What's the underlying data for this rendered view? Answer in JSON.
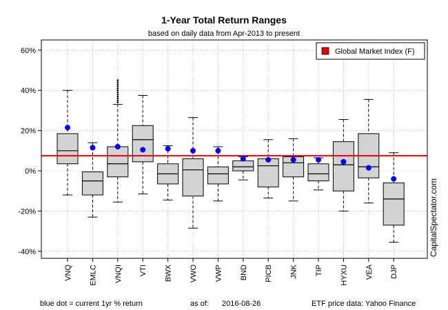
{
  "chart_data": {
    "type": "box",
    "title": "1-Year Total Return Ranges",
    "subtitle": "based on daily data from Apr-2013 to present",
    "ylim": [
      -45,
      63
    ],
    "yticks": [
      -40,
      -20,
      0,
      20,
      40,
      60
    ],
    "ytick_labels": [
      "-40%",
      "-20%",
      "0%",
      "20%",
      "40%",
      "60%"
    ],
    "grid": true,
    "categories": [
      "VNQ",
      "EMLC",
      "VNQI",
      "VTI",
      "BWX",
      "VWO",
      "VWP",
      "BND",
      "PICB",
      "JNK",
      "TIP",
      "HYXU",
      "VEA",
      "DJP"
    ],
    "boxes": [
      {
        "whisker_low": -12,
        "q1": 3.5,
        "median": 10,
        "q3": 18.5,
        "whisker_high": 40,
        "outliers": []
      },
      {
        "whisker_low": -23,
        "q1": -12,
        "median": -5,
        "q3": -0.5,
        "whisker_high": 14,
        "outliers": []
      },
      {
        "whisker_low": -15.5,
        "q1": -3,
        "median": 3.5,
        "q3": 12,
        "whisker_high": 33,
        "outliers": [
          34,
          35,
          36,
          37,
          38,
          39,
          40,
          41,
          42,
          43,
          44,
          45
        ]
      },
      {
        "whisker_low": -11.5,
        "q1": 4.5,
        "median": 15.5,
        "q3": 22.5,
        "whisker_high": 37.5,
        "outliers": []
      },
      {
        "whisker_low": -14.5,
        "q1": -6.5,
        "median": -1.5,
        "q3": 3.5,
        "whisker_high": 12.5,
        "outliers": []
      },
      {
        "whisker_low": -28.5,
        "q1": -12.5,
        "median": 0.5,
        "q3": 6,
        "whisker_high": 26.5,
        "outliers": []
      },
      {
        "whisker_low": -15,
        "q1": -6.5,
        "median": -1.5,
        "q3": 2,
        "whisker_high": 12,
        "outliers": []
      },
      {
        "whisker_low": -4.5,
        "q1": 0,
        "median": 2,
        "q3": 5,
        "whisker_high": 7,
        "outliers": []
      },
      {
        "whisker_low": -13.5,
        "q1": -8,
        "median": 2.5,
        "q3": 6,
        "whisker_high": 15.5,
        "outliers": []
      },
      {
        "whisker_low": -15,
        "q1": -3,
        "median": 4,
        "q3": 7,
        "whisker_high": 16,
        "outliers": []
      },
      {
        "whisker_low": -9.5,
        "q1": -5,
        "median": -1.5,
        "q3": 3.5,
        "whisker_high": 6.5,
        "outliers": []
      },
      {
        "whisker_low": -20,
        "q1": -10,
        "median": 3,
        "q3": 14.5,
        "whisker_high": 25.5,
        "outliers": []
      },
      {
        "whisker_low": -16,
        "q1": -3.5,
        "median": 2,
        "q3": 18.5,
        "whisker_high": 35.5,
        "outliers": []
      },
      {
        "whisker_low": -35.5,
        "q1": -27,
        "median": -14,
        "q3": -6,
        "whisker_high": 9,
        "outliers": []
      }
    ],
    "current_returns": [
      21.5,
      11.5,
      12,
      10.5,
      11,
      10,
      10,
      6,
      5.5,
      5.5,
      5.5,
      4.5,
      1.5,
      -4
    ],
    "reference_line": {
      "label": "Global Market Index (F)",
      "value": 7.5,
      "color": "#e8000b"
    },
    "legend_position": "top-right",
    "dot_color": "#0000ff",
    "box_fill": "#d3d3d3",
    "side_label": "CapitalSpectator.com",
    "footer": {
      "left": "blue dot = current 1yr % return",
      "as_of_label": "as of:",
      "as_of_date": "2016-08-26",
      "right": "ETF price data: Yahoo Finance"
    }
  }
}
